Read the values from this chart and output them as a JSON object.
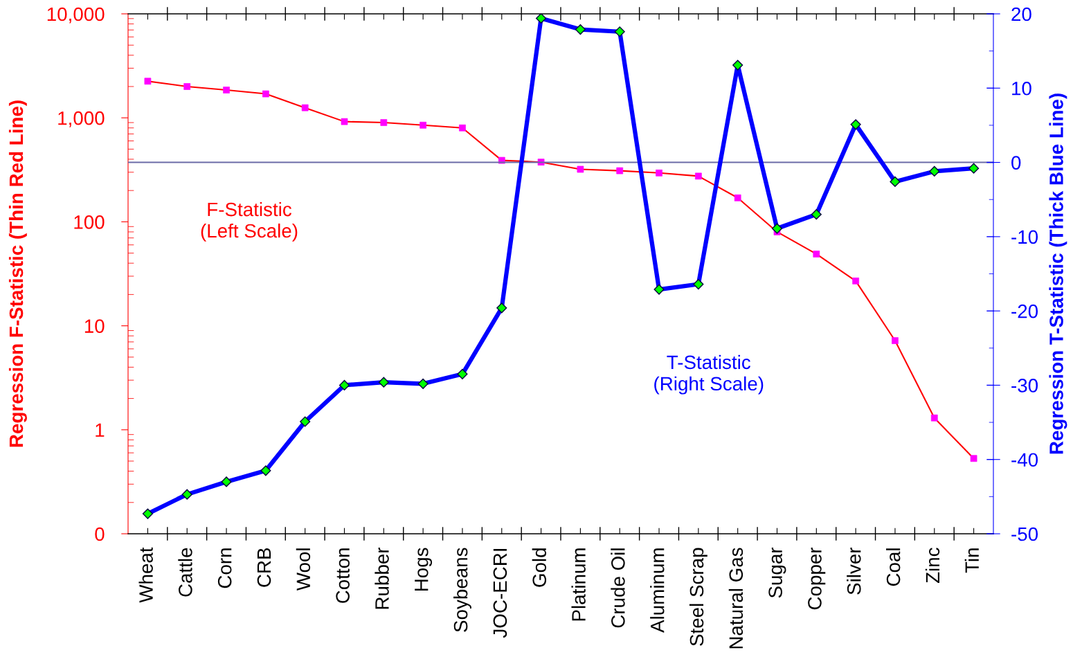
{
  "chart_data": {
    "type": "line",
    "categories": [
      "Wheat",
      "Cattle",
      "Corn",
      "CRB",
      "Wool",
      "Cotton",
      "Rubber",
      "Hogs",
      "Soybeans",
      "JOC-ECRI",
      "Gold",
      "Platinum",
      "Crude Oil",
      "Aluminum",
      "Steel Scrap",
      "Natural Gas",
      "Sugar",
      "Copper",
      "Silver",
      "Coal",
      "Zinc",
      "Tin"
    ],
    "series": [
      {
        "color": "#ff0000",
        "marker": "square",
        "colors": [
          "#ff00ff",
          "#ff00ff",
          "#ff00ff",
          "#ff00ff",
          "#ff00ff",
          "#ff00ff",
          "#ff00ff",
          "#ff00ff",
          "#ff00ff",
          "#ff00ff",
          "#ff00ff",
          "#ff00ff",
          "#ff00ff",
          "#ff00ff",
          "#ff00ff",
          "#ff00ff",
          "#ff00ff",
          "#ff00ff",
          "#ff00ff",
          "#ff00ff",
          "#ff00ff",
          "#ff00ff"
        ],
        "values": [
          2250,
          2000,
          1850,
          1700,
          1250,
          920,
          900,
          850,
          800,
          390,
          375,
          320,
          310,
          295,
          275,
          170,
          80,
          49,
          27,
          7.2,
          1.3,
          0.53
        ]
      },
      {
        "color": "#0000ff",
        "marker": "diamond",
        "axis": "y2",
        "colors": [
          "#00ff00",
          "#00ff00",
          "#00ff00",
          "#00ff00",
          "#00ff00",
          "#00ff00",
          "#00ff00",
          "#00ff00",
          "#00ff00",
          "#00ff00",
          "#00ff00",
          "#00ff00",
          "#00ff00",
          "#00ff00",
          "#00ff00",
          "#00ff00",
          "#00ff00",
          "#00ff00",
          "#00ff00",
          "#00ff00",
          "#00ff00",
          "#00ff00"
        ],
        "values": [
          -47.3,
          -44.7,
          -43.0,
          -41.5,
          -34.9,
          -30.0,
          -29.6,
          -29.8,
          -28.5,
          -19.6,
          19.4,
          17.9,
          17.6,
          -17.1,
          -16.4,
          13.1,
          -8.9,
          -7.0,
          5.1,
          -2.6,
          -1.2,
          -0.8
        ]
      }
    ],
    "ylabel": "Regression F-Statistic (Thin Red Line)",
    "y2label": "Regression T-Statistic (Thick Blue Line)",
    "log": true,
    "ylim": [
      0.1,
      10000
    ],
    "yticks": [
      {
        "value": 0.1,
        "label": "0"
      },
      1,
      10,
      100,
      {
        "value": 1000,
        "label": "1,000"
      },
      {
        "value": 10000,
        "label": "10,000"
      }
    ],
    "y2lim": [
      -50,
      20
    ],
    "y2ticks": [
      -50,
      {
        "value": -45,
        "label": null
      },
      -40,
      {
        "value": -35,
        "label": null
      },
      -30,
      {
        "value": -25,
        "label": null
      },
      -20,
      {
        "value": -15,
        "label": null
      },
      -10,
      {
        "value": -5,
        "label": null
      },
      0,
      {
        "value": 5,
        "label": null
      },
      10,
      {
        "value": 15,
        "label": null
      },
      20
    ],
    "annotations": [
      "F-Statistic\n(Left Scale)",
      "T-Statistic\n(Right Scale)"
    ],
    "ref_lines": [
      {
        "axis": "y2",
        "value": 0,
        "color": "#6b6ba8"
      }
    ],
    "grid": false
  }
}
